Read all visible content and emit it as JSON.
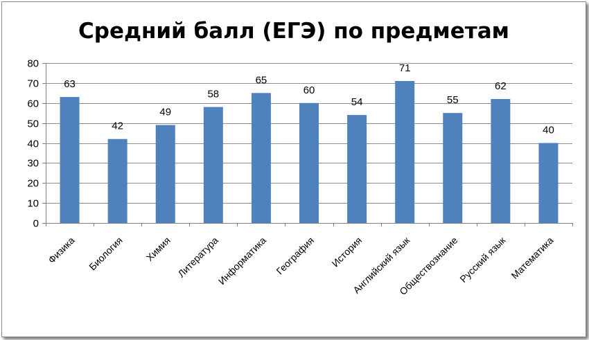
{
  "chart_data": {
    "type": "bar",
    "title": "Средний балл (ЕГЭ) по предметам",
    "categories": [
      "Физика",
      "Биология",
      "Химия",
      "Литература",
      "Информатика",
      "География",
      "История",
      "Английский язык",
      "Обществознание",
      "Русский язык",
      "Математика"
    ],
    "values": [
      63,
      42,
      49,
      58,
      65,
      60,
      54,
      71,
      55,
      62,
      40
    ],
    "data_labels": [
      "63",
      "42",
      "49",
      "58",
      "65",
      "60",
      "54",
      "71",
      "55",
      "62",
      "40"
    ],
    "y_ticks": [
      "0",
      "10",
      "20",
      "30",
      "40",
      "50",
      "60",
      "70",
      "80"
    ],
    "ylim": [
      0,
      80
    ],
    "xlabel": "",
    "ylabel": "",
    "grid": true,
    "legend": "none",
    "colors": {
      "bar": "#4f81bd"
    }
  }
}
